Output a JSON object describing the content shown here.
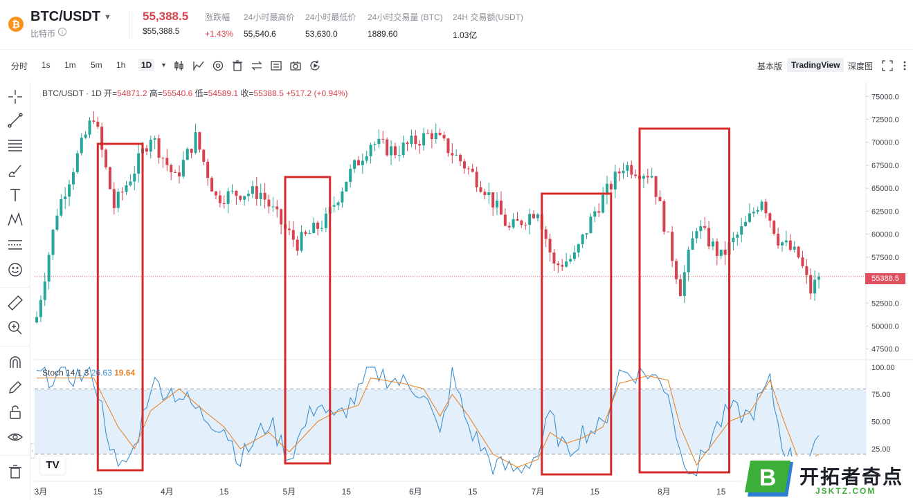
{
  "header": {
    "coin_icon": "bitcoin-icon",
    "symbol": "BTC/USDT",
    "subname": "比特币",
    "price": "55,388.5",
    "price_usd": "$55,388.5",
    "stats": [
      {
        "label": "涨跌幅",
        "value": "+1.43%",
        "color": "red"
      },
      {
        "label": "24小时最高价",
        "value": "55,540.6"
      },
      {
        "label": "24小时最低价",
        "value": "53,630.0"
      },
      {
        "label": "24小时交易量 (BTC)",
        "value": "1889.60"
      },
      {
        "label": "24H 交易额(USDT)",
        "value": "1.03亿"
      }
    ]
  },
  "toolbar": {
    "intervals": [
      "分时",
      "1s",
      "1m",
      "5m",
      "1h",
      "1D"
    ],
    "active_interval": "1D",
    "views": [
      "基本版",
      "TradingView",
      "深度图"
    ],
    "active_view": "TradingView"
  },
  "chart_legend": {
    "text": "BTC/USDT · 1D",
    "open_label": "开=",
    "open": "54871.2",
    "high_label": "高=",
    "high": "55540.6",
    "low_label": "低=",
    "low": "54589.1",
    "close_label": "收=",
    "close": "55388.5",
    "change": "+517.2 (+0.94%)"
  },
  "stoch_legend": {
    "name": "Stoch 14 1 3",
    "k": "26.63",
    "d": "19.64"
  },
  "last_price_label": "55388.5",
  "colors": {
    "up": "#26a69a",
    "down": "#d7424f",
    "stoch_k": "#3b8fd1",
    "stoch_d": "#e8852d",
    "highlight_box": "#d42a2a",
    "band": "#e3f0fb"
  },
  "chart_data": [
    {
      "type": "candlestick",
      "x_tick_labels": [
        "3月",
        "15",
        "4月",
        "15",
        "5月",
        "15",
        "6月",
        "15",
        "7月",
        "15",
        "8月",
        "15"
      ],
      "y_tick_labels": [
        "75000.0",
        "72500.0",
        "70000.0",
        "67500.0",
        "65000.0",
        "62500.0",
        "60000.0",
        "57500.0",
        "55000.0",
        "52500.0",
        "50000.0",
        "47500.0"
      ],
      "ylim": [
        46500,
        76000
      ],
      "last_price": 55388.5,
      "close_path": [
        {
          "date": "2024-02-29",
          "close": 51000
        },
        {
          "date": "2024-03-05",
          "close": 62500
        },
        {
          "date": "2024-03-10",
          "close": 68500
        },
        {
          "date": "2024-03-14",
          "close": 73000
        },
        {
          "date": "2024-03-19",
          "close": 63000
        },
        {
          "date": "2024-03-24",
          "close": 67000
        },
        {
          "date": "2024-03-28",
          "close": 70800
        },
        {
          "date": "2024-04-03",
          "close": 66000
        },
        {
          "date": "2024-04-08",
          "close": 70500
        },
        {
          "date": "2024-04-13",
          "close": 64000
        },
        {
          "date": "2024-04-19",
          "close": 64500
        },
        {
          "date": "2024-04-24",
          "close": 64500
        },
        {
          "date": "2024-04-30",
          "close": 60500
        },
        {
          "date": "2024-05-03",
          "close": 59000
        },
        {
          "date": "2024-05-10",
          "close": 61500
        },
        {
          "date": "2024-05-15",
          "close": 66000
        },
        {
          "date": "2024-05-21",
          "close": 70000
        },
        {
          "date": "2024-05-27",
          "close": 69000
        },
        {
          "date": "2024-06-05",
          "close": 71000
        },
        {
          "date": "2024-06-12",
          "close": 68000
        },
        {
          "date": "2024-06-18",
          "close": 65000
        },
        {
          "date": "2024-06-24",
          "close": 60500
        },
        {
          "date": "2024-07-01",
          "close": 62800
        },
        {
          "date": "2024-07-05",
          "close": 56500
        },
        {
          "date": "2024-07-10",
          "close": 57500
        },
        {
          "date": "2024-07-15",
          "close": 62500
        },
        {
          "date": "2024-07-22",
          "close": 67500
        },
        {
          "date": "2024-07-29",
          "close": 66500
        },
        {
          "date": "2024-08-05",
          "close": 54000
        },
        {
          "date": "2024-08-09",
          "close": 61000
        },
        {
          "date": "2024-08-15",
          "close": 57500
        },
        {
          "date": "2024-08-21",
          "close": 61000
        },
        {
          "date": "2024-08-25",
          "close": 64000
        },
        {
          "date": "2024-08-29",
          "close": 59500
        },
        {
          "date": "2024-09-03",
          "close": 57500
        },
        {
          "date": "2024-09-06",
          "close": 53800
        },
        {
          "date": "2024-09-08",
          "close": 55388.5
        }
      ]
    },
    {
      "type": "line",
      "title": "Stoch 14 1 3",
      "y_tick_labels": [
        "100.00",
        "75.00",
        "50.00",
        "25.00"
      ],
      "ylim": [
        -5,
        105
      ],
      "band": [
        20,
        80
      ],
      "series": [
        {
          "name": "K",
          "points": [
            {
              "date": "2024-02-29",
              "value": 92
            },
            {
              "date": "2024-03-08",
              "value": 92
            },
            {
              "date": "2024-03-14",
              "value": 92
            },
            {
              "date": "2024-03-20",
              "value": 2
            },
            {
              "date": "2024-03-24",
              "value": 25
            },
            {
              "date": "2024-03-28",
              "value": 85
            },
            {
              "date": "2024-04-04",
              "value": 75
            },
            {
              "date": "2024-04-10",
              "value": 55
            },
            {
              "date": "2024-04-15",
              "value": 45
            },
            {
              "date": "2024-04-19",
              "value": 15
            },
            {
              "date": "2024-04-26",
              "value": 50
            },
            {
              "date": "2024-05-01",
              "value": 17
            },
            {
              "date": "2024-05-08",
              "value": 70
            },
            {
              "date": "2024-05-12",
              "value": 50
            },
            {
              "date": "2024-05-18",
              "value": 75
            },
            {
              "date": "2024-05-21",
              "value": 97
            },
            {
              "date": "2024-05-29",
              "value": 85
            },
            {
              "date": "2024-06-03",
              "value": 78
            },
            {
              "date": "2024-06-07",
              "value": 35
            },
            {
              "date": "2024-06-10",
              "value": 92
            },
            {
              "date": "2024-06-14",
              "value": 45
            },
            {
              "date": "2024-06-20",
              "value": 10
            },
            {
              "date": "2024-06-26",
              "value": 5
            },
            {
              "date": "2024-07-01",
              "value": 20
            },
            {
              "date": "2024-07-04",
              "value": 55
            },
            {
              "date": "2024-07-08",
              "value": 20
            },
            {
              "date": "2024-07-12",
              "value": 40
            },
            {
              "date": "2024-07-17",
              "value": 45
            },
            {
              "date": "2024-07-21",
              "value": 95
            },
            {
              "date": "2024-07-28",
              "value": 95
            },
            {
              "date": "2024-08-02",
              "value": 80
            },
            {
              "date": "2024-08-05",
              "value": 20
            },
            {
              "date": "2024-08-09",
              "value": 5
            },
            {
              "date": "2024-08-13",
              "value": 40
            },
            {
              "date": "2024-08-17",
              "value": 60
            },
            {
              "date": "2024-08-22",
              "value": 55
            },
            {
              "date": "2024-08-27",
              "value": 85
            },
            {
              "date": "2024-08-30",
              "value": 30
            },
            {
              "date": "2024-09-03",
              "value": 5
            },
            {
              "date": "2024-09-06",
              "value": 20
            },
            {
              "date": "2024-09-08",
              "value": 27
            }
          ]
        },
        {
          "name": "D",
          "points": [
            {
              "date": "2024-02-29",
              "value": 90
            },
            {
              "date": "2024-03-08",
              "value": 90
            },
            {
              "date": "2024-03-14",
              "value": 90
            },
            {
              "date": "2024-03-20",
              "value": 45
            },
            {
              "date": "2024-03-24",
              "value": 25
            },
            {
              "date": "2024-03-28",
              "value": 60
            },
            {
              "date": "2024-04-04",
              "value": 80
            },
            {
              "date": "2024-04-10",
              "value": 60
            },
            {
              "date": "2024-04-15",
              "value": 45
            },
            {
              "date": "2024-04-19",
              "value": 25
            },
            {
              "date": "2024-04-26",
              "value": 40
            },
            {
              "date": "2024-05-01",
              "value": 22
            },
            {
              "date": "2024-05-08",
              "value": 50
            },
            {
              "date": "2024-05-12",
              "value": 58
            },
            {
              "date": "2024-05-18",
              "value": 65
            },
            {
              "date": "2024-05-21",
              "value": 90
            },
            {
              "date": "2024-05-29",
              "value": 85
            },
            {
              "date": "2024-06-03",
              "value": 80
            },
            {
              "date": "2024-06-07",
              "value": 55
            },
            {
              "date": "2024-06-10",
              "value": 75
            },
            {
              "date": "2024-06-14",
              "value": 55
            },
            {
              "date": "2024-06-20",
              "value": 20
            },
            {
              "date": "2024-06-26",
              "value": 8
            },
            {
              "date": "2024-07-01",
              "value": 15
            },
            {
              "date": "2024-07-04",
              "value": 40
            },
            {
              "date": "2024-07-08",
              "value": 30
            },
            {
              "date": "2024-07-12",
              "value": 35
            },
            {
              "date": "2024-07-17",
              "value": 45
            },
            {
              "date": "2024-07-21",
              "value": 85
            },
            {
              "date": "2024-07-28",
              "value": 92
            },
            {
              "date": "2024-08-02",
              "value": 88
            },
            {
              "date": "2024-08-05",
              "value": 45
            },
            {
              "date": "2024-08-09",
              "value": 10
            },
            {
              "date": "2024-08-13",
              "value": 30
            },
            {
              "date": "2024-08-17",
              "value": 50
            },
            {
              "date": "2024-08-22",
              "value": 58
            },
            {
              "date": "2024-08-27",
              "value": 88
            },
            {
              "date": "2024-08-30",
              "value": 55
            },
            {
              "date": "2024-09-03",
              "value": 15
            },
            {
              "date": "2024-09-06",
              "value": 15
            },
            {
              "date": "2024-09-08",
              "value": 20
            }
          ]
        }
      ]
    }
  ],
  "highlight_boxes": [
    {
      "from": "2024-03-15",
      "to": "2024-03-26"
    },
    {
      "from": "2024-04-30",
      "to": "2024-05-11"
    },
    {
      "from": "2024-07-02",
      "to": "2024-07-19"
    },
    {
      "from": "2024-07-26",
      "to": "2024-08-17"
    }
  ],
  "watermark": {
    "logo_letter": "B",
    "text": "开拓者奇点",
    "url": "JSKTZ.COM"
  }
}
